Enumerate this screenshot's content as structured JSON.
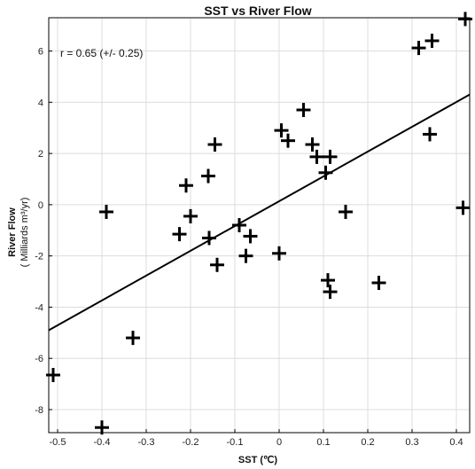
{
  "chart_data": {
    "type": "scatter",
    "title": "SST vs River Flow",
    "xlabel": "SST (℃)",
    "ylabel_line1": "River Flow",
    "ylabel_line2": "( Milliards m³/yr)",
    "annotation": "r = 0.65 (+/- 0.25)",
    "xlim": [
      -0.52,
      0.43
    ],
    "ylim": [
      -8.9,
      7.3
    ],
    "xticks": [
      -0.5,
      -0.4,
      -0.3,
      -0.2,
      -0.1,
      0,
      0.1,
      0.2,
      0.3,
      0.4
    ],
    "xtick_labels": [
      "-0.5",
      "-0.4",
      "-0.3",
      "-0.2",
      "-0.1",
      "0",
      "0.1",
      "0.2",
      "0.3",
      "0.4"
    ],
    "yticks": [
      -8,
      -6,
      -4,
      -2,
      0,
      2,
      4,
      6
    ],
    "ytick_labels": [
      "-8",
      "-6",
      "-4",
      "-2",
      "0",
      "2",
      "4",
      "6"
    ],
    "grid": true,
    "marker": "plus",
    "marker_color": "#000000",
    "line_color": "#000000",
    "points": [
      {
        "x": -0.51,
        "y": -6.65
      },
      {
        "x": -0.4,
        "y": -8.7
      },
      {
        "x": -0.39,
        "y": -0.28
      },
      {
        "x": -0.33,
        "y": -5.2
      },
      {
        "x": -0.225,
        "y": -1.15
      },
      {
        "x": -0.21,
        "y": 0.75
      },
      {
        "x": -0.2,
        "y": -0.45
      },
      {
        "x": -0.16,
        "y": 1.12
      },
      {
        "x": -0.158,
        "y": -1.3
      },
      {
        "x": -0.145,
        "y": 2.35
      },
      {
        "x": -0.14,
        "y": -2.35
      },
      {
        "x": -0.09,
        "y": -0.8
      },
      {
        "x": -0.075,
        "y": -2.0
      },
      {
        "x": -0.065,
        "y": -1.23
      },
      {
        "x": 0.0,
        "y": -1.9
      },
      {
        "x": 0.005,
        "y": 2.9
      },
      {
        "x": 0.02,
        "y": 2.5
      },
      {
        "x": 0.055,
        "y": 3.7
      },
      {
        "x": 0.075,
        "y": 2.35
      },
      {
        "x": 0.085,
        "y": 1.87
      },
      {
        "x": 0.105,
        "y": 1.25
      },
      {
        "x": 0.11,
        "y": -2.95
      },
      {
        "x": 0.115,
        "y": 1.87
      },
      {
        "x": 0.115,
        "y": -3.4
      },
      {
        "x": 0.15,
        "y": -0.28
      },
      {
        "x": 0.225,
        "y": -3.05
      },
      {
        "x": 0.315,
        "y": 6.12
      },
      {
        "x": 0.34,
        "y": 2.75
      },
      {
        "x": 0.345,
        "y": 6.4
      },
      {
        "x": 0.415,
        "y": -0.12
      },
      {
        "x": 0.42,
        "y": 7.25
      }
    ],
    "fit_line": [
      {
        "x": -0.52,
        "y": -4.9
      },
      {
        "x": 0.43,
        "y": 4.3
      }
    ]
  }
}
